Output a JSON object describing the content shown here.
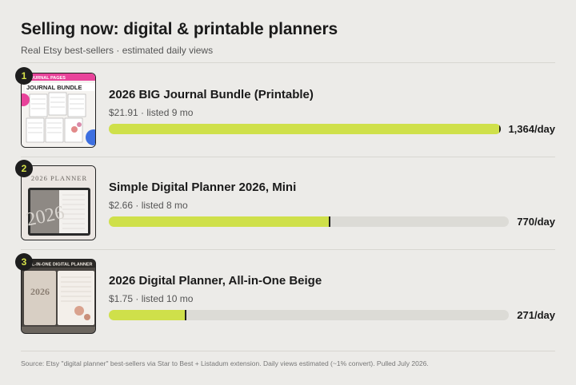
{
  "header": {
    "title": "Selling now: digital & printable planners",
    "subtitle": "Real Etsy best-sellers · estimated daily views"
  },
  "chart_data": {
    "type": "bar",
    "orientation": "horizontal",
    "series": [
      {
        "values": [
          1364,
          770,
          271
        ]
      }
    ],
    "categories": [
      "2026 BIG Journal Bundle (Printable)",
      "Simple Digital Planner 2026, Mini",
      "2026 Digital Planner, All-in-One Beige"
    ],
    "xlim": [
      0,
      1364
    ],
    "bar_color": "#cfe04a",
    "track_color": "#dcdbd6"
  },
  "items": [
    {
      "rank": "1",
      "name": "2026 BIG Journal Bundle (Printable)",
      "meta": "$21.91 · listed 9 mo",
      "views": 1364,
      "views_label": "1,364/day",
      "thumb_text_1": "JOURNAL PAGES",
      "thumb_text_2": "JOURNAL BUNDLE"
    },
    {
      "rank": "2",
      "name": "Simple Digital Planner 2026, Mini",
      "meta": "$2.66 · listed 8 mo",
      "views": 770,
      "views_label": "770/day",
      "thumb_text_1": "2026 PLANNER"
    },
    {
      "rank": "3",
      "name": "2026 Digital Planner, All-in-One Beige",
      "meta": "$1.75 · listed 10 mo",
      "views": 271,
      "views_label": "271/day",
      "thumb_text_1": "ALL-IN-ONE DIGITAL PLANNER",
      "thumb_text_2": "2026"
    }
  ],
  "footer": {
    "source": "Source: Etsy \"digital planner\" best-sellers via Star to Best + Listadum extension. Daily views estimated (~1% convert). Pulled July 2026."
  }
}
